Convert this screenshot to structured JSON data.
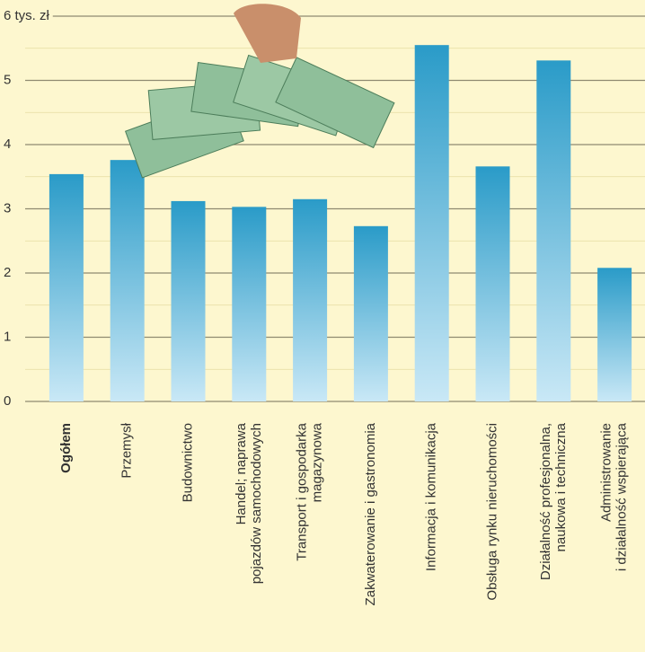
{
  "chart_data": {
    "type": "bar",
    "categories": [
      "Ogółem",
      "Przemysł",
      "Budownictwo",
      "Handel; naprawa\npojazdów samochodowych",
      "Transport i gospodarka\nmagazynowa",
      "Zakwaterowanie i gastronomia",
      "Informacja i komunikacja",
      "Obsługa rynku nieruchomości",
      "Działalność profesjonalna,\nnaukowa i techniczna",
      "Administrowanie\ni działalność wspierająca"
    ],
    "values": [
      3.54,
      3.76,
      3.12,
      3.03,
      3.15,
      2.73,
      5.55,
      3.66,
      5.31,
      2.08
    ],
    "color": "#2a9bc8",
    "ylim": [
      0,
      6
    ],
    "yticks": [
      0,
      1,
      2,
      3,
      4,
      5,
      {
        "value": 6,
        "label": "6 tys. zł"
      }
    ],
    "minor_yticks": [
      0.5,
      1.5,
      2.5,
      3.5,
      4.5,
      5.5
    ],
    "grid": true
  }
}
